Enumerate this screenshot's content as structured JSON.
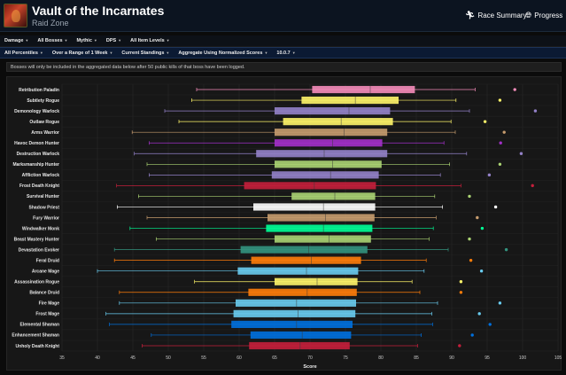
{
  "header": {
    "title": "Vault of the Incarnates",
    "subtitle": "Raid Zone",
    "race_summary": "Race Summary",
    "progress": "Progress"
  },
  "filters_row1": [
    {
      "label": "Damage"
    },
    {
      "label": "All Bosses"
    },
    {
      "label": "Mythic"
    },
    {
      "label": "DPS"
    },
    {
      "label": "All Item Levels"
    }
  ],
  "filters_row2": [
    {
      "label": "All Percentiles"
    },
    {
      "label": "Over a Range of 1 Week"
    },
    {
      "label": "Current Standings"
    },
    {
      "label": "Aggregate Using Normalized Scores"
    },
    {
      "label": "10.0.7"
    }
  ],
  "notice": "Bosses will only be included in the aggregated data below after 50 public kills of that boss have been logged.",
  "chart_data": {
    "type": "box",
    "xlabel": "Score",
    "xlim": [
      35,
      105
    ],
    "xticks": [
      35,
      40,
      45,
      50,
      55,
      60,
      65,
      70,
      75,
      80,
      85,
      90,
      95,
      100,
      105
    ],
    "grid": true,
    "specs": [
      {
        "name": "Retribution Paladin",
        "color": "#F58CBA",
        "min": 54,
        "q1": 70.3,
        "median": 78.5,
        "q3": 84.8,
        "max": 93.3,
        "outlier": 98.9
      },
      {
        "name": "Subtlety Rogue",
        "color": "#FFF569",
        "min": 53.3,
        "q1": 68.8,
        "median": 76.4,
        "q3": 82.5,
        "max": 90.6,
        "outlier": 96.8
      },
      {
        "name": "Demonology Warlock",
        "color": "#9482C9",
        "min": 49.5,
        "q1": 65,
        "median": 75.5,
        "q3": 81.3,
        "max": 92.5,
        "outlier": 101.8
      },
      {
        "name": "Outlaw Rogue",
        "color": "#FFF569",
        "min": 51.5,
        "q1": 66.2,
        "median": 74.4,
        "q3": 81.7,
        "max": 89.9,
        "outlier": 94.7
      },
      {
        "name": "Arms Warrior",
        "color": "#C79C6E",
        "min": 44.9,
        "q1": 65,
        "median": 74.8,
        "q3": 80.9,
        "max": 90.5,
        "outlier": 97.4
      },
      {
        "name": "Havoc Demon Hunter",
        "color": "#A330C9",
        "min": 47.3,
        "q1": 65,
        "median": 73.2,
        "q3": 80.2,
        "max": 88.9,
        "outlier": 96.9
      },
      {
        "name": "Destruction Warlock",
        "color": "#9482C9",
        "min": 45.2,
        "q1": 62.4,
        "median": 72,
        "q3": 80.9,
        "max": 92.1,
        "outlier": 99.8
      },
      {
        "name": "Marksmanship Hunter",
        "color": "#ABD473",
        "min": 47,
        "q1": 65,
        "median": 73.2,
        "q3": 80.1,
        "max": 89.7,
        "outlier": 96.8
      },
      {
        "name": "Affliction Warlock",
        "color": "#9482C9",
        "min": 47.3,
        "q1": 64.6,
        "median": 72.9,
        "q3": 79.7,
        "max": 88.4,
        "outlier": 95.3
      },
      {
        "name": "Frost Death Knight",
        "color": "#C41F3B",
        "min": 42.7,
        "q1": 60.7,
        "median": 70.6,
        "q3": 79.3,
        "max": 91.3,
        "outlier": 101.4
      },
      {
        "name": "Survival Hunter",
        "color": "#ABD473",
        "min": 45.8,
        "q1": 67.4,
        "median": 73.5,
        "q3": 79.2,
        "max": 87.6,
        "outlier": 92.5
      },
      {
        "name": "Shadow Priest",
        "color": "#FFFFFF",
        "min": 42.8,
        "q1": 62,
        "median": 71.9,
        "q3": 79.2,
        "max": 88.7,
        "outlier": 96.2
      },
      {
        "name": "Fury Warrior",
        "color": "#C79C6E",
        "min": 47,
        "q1": 64,
        "median": 72.2,
        "q3": 79.1,
        "max": 87.8,
        "outlier": 93.6
      },
      {
        "name": "Windwalker Monk",
        "color": "#00FF96",
        "min": 44.6,
        "q1": 63.8,
        "median": 71.9,
        "q3": 78.8,
        "max": 87.4,
        "outlier": 94.3
      },
      {
        "name": "Beast Mastery Hunter",
        "color": "#ABD473",
        "min": 48.3,
        "q1": 65,
        "median": 72.7,
        "q3": 78.6,
        "max": 86.8,
        "outlier": 92.5
      },
      {
        "name": "Devastation Evoker",
        "color": "#33937F",
        "min": 42.4,
        "q1": 60.2,
        "median": 69.8,
        "q3": 78.1,
        "max": 89.5,
        "outlier": 97.7
      },
      {
        "name": "Feral Druid",
        "color": "#FF7D0A",
        "min": 42.4,
        "q1": 61.7,
        "median": 70.2,
        "q3": 77.2,
        "max": 86.4,
        "outlier": 92.7
      },
      {
        "name": "Arcane Mage",
        "color": "#69CCF0",
        "min": 40,
        "q1": 59.8,
        "median": 69.5,
        "q3": 76.8,
        "max": 86.1,
        "outlier": 94.2
      },
      {
        "name": "Assassination Rogue",
        "color": "#FFF569",
        "min": 53.7,
        "q1": 65,
        "median": 71,
        "q3": 76.7,
        "max": 84.4,
        "outlier": 91.3
      },
      {
        "name": "Balance Druid",
        "color": "#FF7D0A",
        "min": 43.1,
        "q1": 61.3,
        "median": 69.6,
        "q3": 76.6,
        "max": 85.5,
        "outlier": 91.3
      },
      {
        "name": "Fire Mage",
        "color": "#69CCF0",
        "min": 43.1,
        "q1": 59.5,
        "median": 68.1,
        "q3": 76.5,
        "max": 88,
        "outlier": 96.8
      },
      {
        "name": "Frost Mage",
        "color": "#69CCF0",
        "min": 41.2,
        "q1": 59.2,
        "median": 68.3,
        "q3": 76.4,
        "max": 87.2,
        "outlier": 93.9
      },
      {
        "name": "Elemental Shaman",
        "color": "#0070DE",
        "min": 41.7,
        "q1": 58.9,
        "median": 68.1,
        "q3": 76,
        "max": 87.3,
        "outlier": 95.4
      },
      {
        "name": "Enhancement Shaman",
        "color": "#0070DE",
        "min": 47.6,
        "q1": 61.6,
        "median": 68.9,
        "q3": 75.8,
        "max": 85.7,
        "outlier": 92.9
      },
      {
        "name": "Unholy Death Knight",
        "color": "#C41F3B",
        "min": 46.3,
        "q1": 61.4,
        "median": 68.6,
        "q3": 75.6,
        "max": 85.2,
        "outlier": 91.1
      }
    ]
  }
}
